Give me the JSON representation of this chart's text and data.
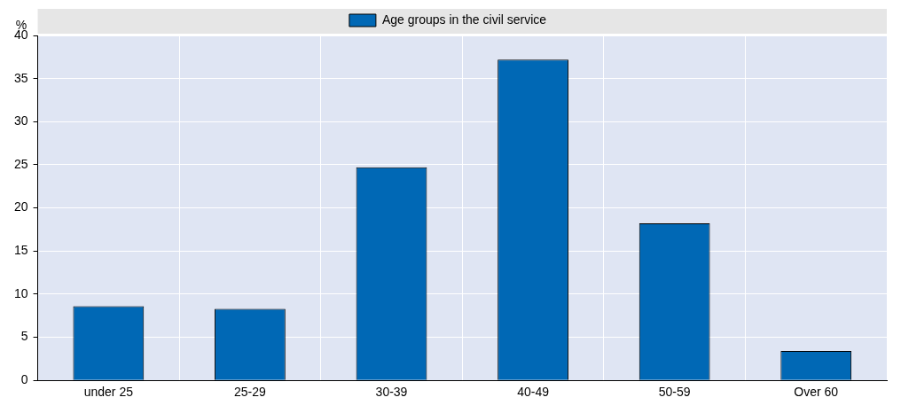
{
  "chart_data": {
    "type": "bar",
    "ylabel": "%",
    "categories": [
      "under 25",
      "25-29",
      "30-39",
      "40-49",
      "50-59",
      "Over 60"
    ],
    "series": [
      {
        "name": "Age groups in the civil service",
        "color": "#0068b5",
        "values": [
          8.6,
          8.3,
          24.7,
          37.2,
          18.2,
          3.4
        ]
      }
    ],
    "ylim": [
      0,
      40
    ],
    "yticks": [
      0,
      5,
      10,
      15,
      20,
      25,
      30,
      35,
      40
    ],
    "grid": true,
    "legend": "top"
  }
}
